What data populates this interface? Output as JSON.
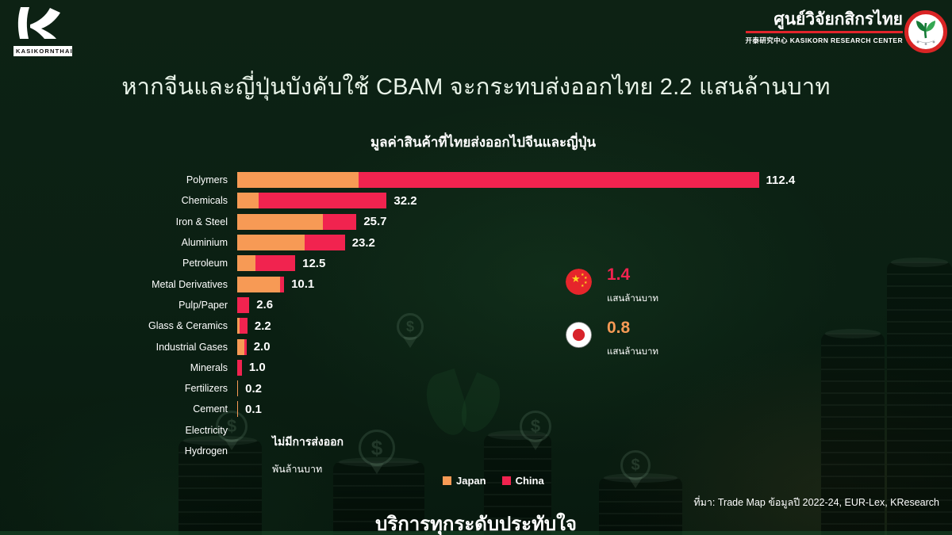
{
  "brand": {
    "logo_label": "KASIKORNTHAI",
    "research_center": {
      "title": "ศูนย์วิจัยกสิกรไทย",
      "subtitle": "开泰研究中心 KASIKORN RESEARCH CENTER"
    }
  },
  "page_title": "หากจีนและญี่ปุ่นบังคับใช้ CBAM จะกระทบส่งออกไทย 2.2 แสนล้านบาท",
  "chart_data": {
    "type": "bar",
    "orientation": "horizontal",
    "stacked": true,
    "title": "มูลค่าสินค้าที่ไทยส่งออกไปจีนและญี่ปุ่น",
    "unit_label": "พันล้านบาท",
    "no_export_label": "ไม่มีการส่งออก",
    "xlim": [
      0,
      115
    ],
    "grid": false,
    "legend_position": "bottom",
    "categories": [
      "Polymers",
      "Chemicals",
      "Iron & Steel",
      "Aluminium",
      "Petroleum",
      "Metal Derivatives",
      "Pulp/Paper",
      "Glass & Ceramics",
      "Industrial Gases",
      "Minerals",
      "Fertilizers",
      "Cement",
      "Electricity",
      "Hydrogen"
    ],
    "series": [
      {
        "name": "Japan",
        "color": "#F79A55",
        "values": [
          26.1,
          4.6,
          18.4,
          14.5,
          4.0,
          9.3,
          0,
          0.5,
          1.6,
          0,
          0.2,
          0.1,
          0,
          0
        ]
      },
      {
        "name": "China",
        "color": "#F1234F",
        "values": [
          86.3,
          27.6,
          7.3,
          8.7,
          8.5,
          0.8,
          2.6,
          1.7,
          0.4,
          1.0,
          0,
          0,
          0,
          0
        ]
      }
    ],
    "total_labels": [
      "112.4",
      "32.2",
      "25.7",
      "23.2",
      "12.5",
      "10.1",
      "2.6",
      "2.2",
      "2.0",
      "1.0",
      "0.2",
      "0.1",
      "",
      ""
    ],
    "no_export_categories": [
      "Electricity",
      "Hydrogen"
    ]
  },
  "stats": [
    {
      "country": "China",
      "value": "1.4",
      "unit": "แสนล้านบาท",
      "value_color": "#F1234F"
    },
    {
      "country": "Japan",
      "value": "0.8",
      "unit": "แสนล้านบาท",
      "value_color": "#F79A55"
    }
  ],
  "source_note": "ที่มา: Trade Map ข้อมูลปี 2022-24, EUR-Lex, KResearch",
  "footer_slogan": "บริการทุกระดับประทับใจ",
  "colors": {
    "background": "#0B2013",
    "japan_orange": "#F79A55",
    "china_pink": "#F1234F",
    "brand_red": "#E3242B",
    "title_text": "#E8F3E8"
  }
}
